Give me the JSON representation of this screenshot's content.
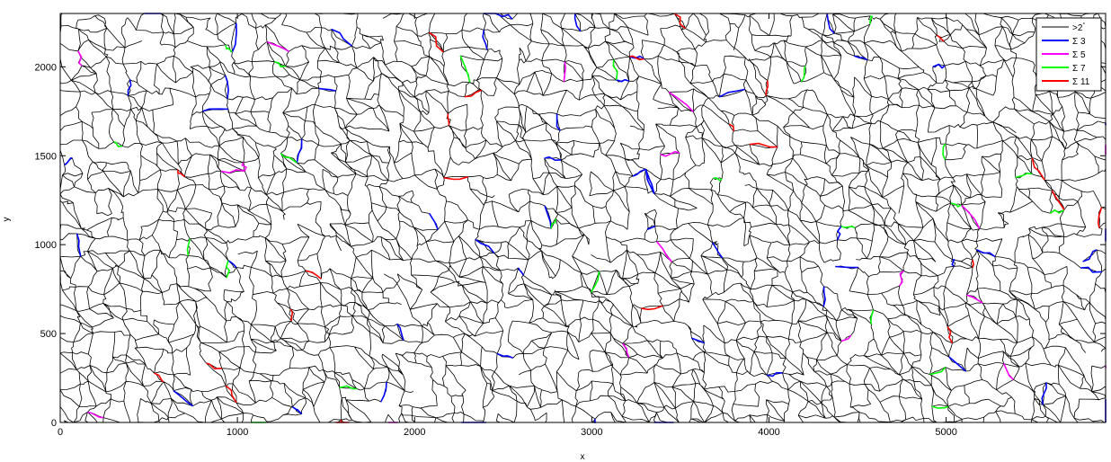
{
  "chart_data": {
    "type": "grain-boundary-map",
    "xlabel": "x",
    "ylabel": "y",
    "xlim": [
      0,
      5900
    ],
    "ylim": [
      0,
      2300
    ],
    "xticks": [
      "0",
      "1000",
      "2000",
      "3000",
      "4000",
      "5000"
    ],
    "yticks": [
      "0",
      "500",
      "1000",
      "1500",
      "2000"
    ],
    "xtick_values": [
      0,
      1000,
      2000,
      3000,
      4000,
      5000
    ],
    "ytick_values": [
      0,
      500,
      1000,
      1500,
      2000
    ],
    "legend_position": "top-right",
    "series": [
      {
        "name": ">2°",
        "color": "#000000",
        "display": ">2",
        "sup": "°"
      },
      {
        "name": "Σ 3",
        "color": "#0000ff",
        "display": "Σ 3"
      },
      {
        "name": "Σ 5",
        "color": "#ff00ff",
        "display": "Σ 5"
      },
      {
        "name": "Σ 7",
        "color": "#00ff00",
        "display": "Σ 7"
      },
      {
        "name": "Σ 11",
        "color": "#ff0000",
        "display": "Σ 11"
      }
    ]
  }
}
